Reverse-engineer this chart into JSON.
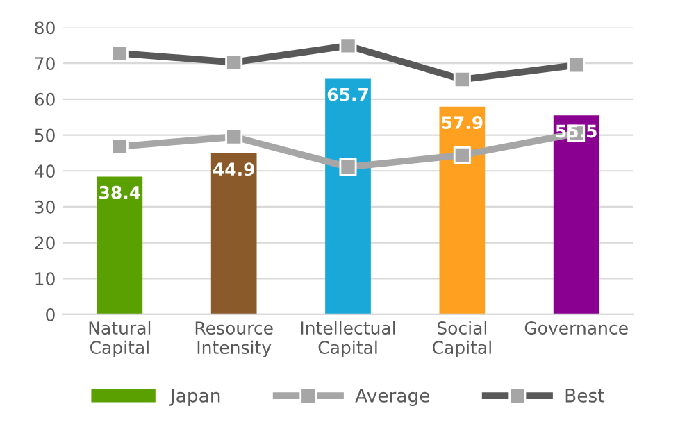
{
  "chart_data": {
    "type": "bar",
    "categories": [
      "Natural\nCapital",
      "Resource\nIntensity",
      "Intellectual\nCapital",
      "Social\nCapital",
      "Governance"
    ],
    "series": [
      {
        "name": "Japan",
        "color": "#5aa000",
        "colors": [
          "#5aa000",
          "#8b5a2b",
          "#1aa8d8",
          "#ffa020",
          "#8a0090"
        ],
        "values": [
          38.4,
          44.9,
          65.7,
          57.9,
          55.5
        ],
        "value_labels": [
          "38.4",
          "44.9",
          "65.7",
          "57.9",
          "55.5"
        ]
      },
      {
        "name": "Average",
        "type": "line",
        "color": "#a6a6a6",
        "values": [
          46.8,
          49.5,
          41.1,
          44.4,
          50.5
        ]
      },
      {
        "name": "Best",
        "type": "line",
        "color": "#595959",
        "values": [
          72.8,
          70.3,
          74.9,
          65.5,
          69.5
        ]
      }
    ],
    "ylim": [
      0,
      80
    ],
    "yticks": [
      0,
      10,
      20,
      30,
      40,
      50,
      60,
      70,
      80
    ],
    "grid": "y",
    "legend": "bottom",
    "marker": "square",
    "line_style": "solid"
  }
}
